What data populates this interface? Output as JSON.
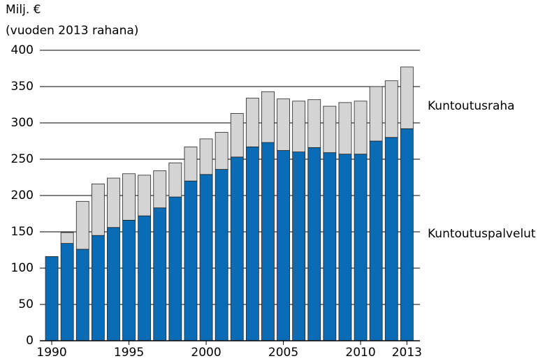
{
  "chart_data": {
    "type": "stacked_bar",
    "y_label_line1": "Milj. €",
    "y_label_line2": "(vuoden 2013 rahana)",
    "categories": [
      "1990",
      null,
      null,
      null,
      null,
      "1995",
      null,
      null,
      null,
      null,
      "2000",
      null,
      null,
      null,
      null,
      "2005",
      null,
      null,
      null,
      null,
      "2010",
      null,
      null,
      "2013"
    ],
    "series": [
      {
        "name": "Kuntoutuspalvelut",
        "color": "#0a6cb5",
        "values": [
          116,
          134,
          126,
          145,
          156,
          166,
          172,
          183,
          198,
          220,
          229,
          236,
          253,
          267,
          273,
          262,
          260,
          266,
          259,
          257,
          257,
          275,
          280,
          292
        ]
      },
      {
        "name": "Kuntoutusraha",
        "color": "#d4d4d4",
        "values": [
          0,
          15,
          66,
          71,
          68,
          64,
          56,
          51,
          47,
          47,
          49,
          51,
          60,
          67,
          70,
          71,
          70,
          66,
          64,
          71,
          73,
          75,
          78,
          85
        ]
      }
    ],
    "ylim": [
      0,
      400
    ],
    "yticks": [
      0,
      50,
      100,
      150,
      200,
      250,
      300,
      350,
      400
    ],
    "grid": true
  }
}
